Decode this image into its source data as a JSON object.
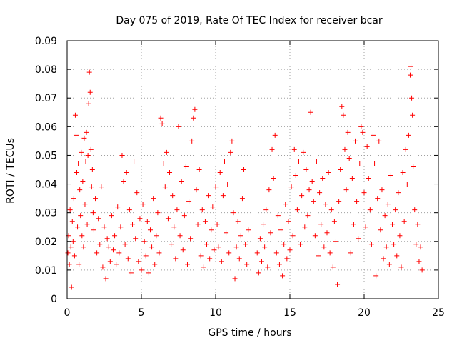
{
  "chart_data": {
    "type": "scatter",
    "title": "Day 075 of 2019, Rate Of TEC Index for receiver bcar",
    "xlabel": "GPS time / hours",
    "ylabel": "ROTI / TECUs",
    "xlim": [
      0,
      25
    ],
    "ylim": [
      0,
      0.09
    ],
    "x_ticks": [
      0,
      5,
      10,
      15,
      20,
      25
    ],
    "x_tick_labels": [
      "0",
      "5",
      "10",
      "15",
      "20",
      "25"
    ],
    "y_ticks": [
      0,
      0.01,
      0.02,
      0.03,
      0.04,
      0.05,
      0.06,
      0.07,
      0.08,
      0.09
    ],
    "y_tick_labels": [
      "0",
      "0.01",
      "0.02",
      "0.03",
      "0.04",
      "0.05",
      "0.06",
      "0.07",
      "0.08",
      "0.09"
    ],
    "grid": true,
    "marker": "+",
    "color": "#ff0000",
    "series": [
      {
        "points": [
          [
            0.05,
            0.016
          ],
          [
            0.1,
            0.022
          ],
          [
            0.15,
            0.012
          ],
          [
            0.2,
            0.031
          ],
          [
            0.25,
            0.018
          ],
          [
            0.3,
            0.004
          ],
          [
            0.35,
            0.027
          ],
          [
            0.4,
            0.02
          ],
          [
            0.45,
            0.035
          ],
          [
            0.5,
            0.015
          ],
          [
            0.55,
            0.064
          ],
          [
            0.6,
            0.057
          ],
          [
            0.65,
            0.044
          ],
          [
            0.7,
            0.025
          ],
          [
            0.75,
            0.047
          ],
          [
            0.8,
            0.012
          ],
          [
            0.85,
            0.038
          ],
          [
            0.9,
            0.029
          ],
          [
            0.95,
            0.051
          ],
          [
            1.0,
            0.022
          ],
          [
            1.05,
            0.041
          ],
          [
            1.1,
            0.018
          ],
          [
            1.15,
            0.056
          ],
          [
            1.2,
            0.033
          ],
          [
            1.25,
            0.048
          ],
          [
            1.3,
            0.058
          ],
          [
            1.35,
            0.026
          ],
          [
            1.4,
            0.05
          ],
          [
            1.45,
            0.068
          ],
          [
            1.5,
            0.079
          ],
          [
            1.55,
            0.072
          ],
          [
            1.6,
            0.052
          ],
          [
            1.65,
            0.039
          ],
          [
            1.7,
            0.045
          ],
          [
            1.75,
            0.03
          ],
          [
            1.8,
            0.024
          ],
          [
            1.9,
            0.035
          ],
          [
            2.0,
            0.016
          ],
          [
            2.1,
            0.028
          ],
          [
            2.2,
            0.019
          ],
          [
            2.3,
            0.039
          ],
          [
            2.4,
            0.011
          ],
          [
            2.5,
            0.025
          ],
          [
            2.6,
            0.007
          ],
          [
            2.7,
            0.021
          ],
          [
            2.8,
            0.018
          ],
          [
            2.9,
            0.013
          ],
          [
            3.0,
            0.029
          ],
          [
            3.1,
            0.017
          ],
          [
            3.2,
            0.022
          ],
          [
            3.3,
            0.012
          ],
          [
            3.4,
            0.032
          ],
          [
            3.5,
            0.016
          ],
          [
            3.6,
            0.025
          ],
          [
            3.7,
            0.05
          ],
          [
            3.8,
            0.041
          ],
          [
            3.9,
            0.019
          ],
          [
            4.0,
            0.044
          ],
          [
            4.1,
            0.014
          ],
          [
            4.2,
            0.031
          ],
          [
            4.3,
            0.009
          ],
          [
            4.4,
            0.026
          ],
          [
            4.5,
            0.048
          ],
          [
            4.6,
            0.021
          ],
          [
            4.7,
            0.037
          ],
          [
            4.8,
            0.013
          ],
          [
            4.9,
            0.028
          ],
          [
            5.0,
            0.01
          ],
          [
            5.1,
            0.033
          ],
          [
            5.2,
            0.02
          ],
          [
            5.3,
            0.015
          ],
          [
            5.4,
            0.027
          ],
          [
            5.5,
            0.009
          ],
          [
            5.6,
            0.024
          ],
          [
            5.7,
            0.018
          ],
          [
            5.8,
            0.035
          ],
          [
            5.9,
            0.012
          ],
          [
            6.0,
            0.022
          ],
          [
            6.1,
            0.03
          ],
          [
            6.2,
            0.016
          ],
          [
            6.3,
            0.063
          ],
          [
            6.4,
            0.061
          ],
          [
            6.5,
            0.047
          ],
          [
            6.6,
            0.039
          ],
          [
            6.7,
            0.051
          ],
          [
            6.8,
            0.028
          ],
          [
            6.9,
            0.044
          ],
          [
            7.0,
            0.019
          ],
          [
            7.1,
            0.036
          ],
          [
            7.2,
            0.025
          ],
          [
            7.3,
            0.014
          ],
          [
            7.4,
            0.031
          ],
          [
            7.5,
            0.06
          ],
          [
            7.6,
            0.022
          ],
          [
            7.7,
            0.041
          ],
          [
            7.8,
            0.017
          ],
          [
            7.9,
            0.029
          ],
          [
            8.0,
            0.046
          ],
          [
            8.1,
            0.012
          ],
          [
            8.2,
            0.034
          ],
          [
            8.3,
            0.021
          ],
          [
            8.4,
            0.055
          ],
          [
            8.5,
            0.063
          ],
          [
            8.6,
            0.066
          ],
          [
            8.7,
            0.038
          ],
          [
            8.8,
            0.026
          ],
          [
            8.9,
            0.045
          ],
          [
            9.0,
            0.015
          ],
          [
            9.1,
            0.031
          ],
          [
            9.2,
            0.011
          ],
          [
            9.3,
            0.027
          ],
          [
            9.4,
            0.019
          ],
          [
            9.5,
            0.036
          ],
          [
            9.6,
            0.014
          ],
          [
            9.7,
            0.024
          ],
          [
            9.8,
            0.032
          ],
          [
            9.9,
            0.017
          ],
          [
            10.0,
            0.039
          ],
          [
            10.1,
            0.026
          ],
          [
            10.2,
            0.018
          ],
          [
            10.3,
            0.044
          ],
          [
            10.4,
            0.013
          ],
          [
            10.5,
            0.036
          ],
          [
            10.6,
            0.048
          ],
          [
            10.7,
            0.023
          ],
          [
            10.8,
            0.04
          ],
          [
            10.9,
            0.016
          ],
          [
            11.0,
            0.051
          ],
          [
            11.1,
            0.055
          ],
          [
            11.2,
            0.03
          ],
          [
            11.3,
            0.007
          ],
          [
            11.4,
            0.018
          ],
          [
            11.5,
            0.027
          ],
          [
            11.6,
            0.014
          ],
          [
            11.7,
            0.022
          ],
          [
            11.8,
            0.035
          ],
          [
            11.9,
            0.045
          ],
          [
            12.0,
            0.019
          ],
          [
            12.1,
            0.012
          ],
          [
            12.2,
            0.024
          ],
          [
            12.8,
            0.016
          ],
          [
            12.9,
            0.009
          ],
          [
            13.0,
            0.021
          ],
          [
            13.1,
            0.013
          ],
          [
            13.2,
            0.026
          ],
          [
            13.3,
            0.018
          ],
          [
            13.4,
            0.031
          ],
          [
            13.5,
            0.011
          ],
          [
            13.6,
            0.038
          ],
          [
            13.7,
            0.023
          ],
          [
            13.8,
            0.052
          ],
          [
            13.9,
            0.042
          ],
          [
            14.0,
            0.057
          ],
          [
            14.1,
            0.016
          ],
          [
            14.2,
            0.029
          ],
          [
            14.3,
            0.012
          ],
          [
            14.4,
            0.024
          ],
          [
            14.5,
            0.008
          ],
          [
            14.6,
            0.019
          ],
          [
            14.7,
            0.033
          ],
          [
            14.8,
            0.014
          ],
          [
            14.9,
            0.027
          ],
          [
            15.0,
            0.017
          ],
          [
            15.1,
            0.039
          ],
          [
            15.2,
            0.022
          ],
          [
            15.3,
            0.052
          ],
          [
            15.4,
            0.043
          ],
          [
            15.5,
            0.031
          ],
          [
            15.6,
            0.048
          ],
          [
            15.7,
            0.019
          ],
          [
            15.8,
            0.036
          ],
          [
            15.9,
            0.051
          ],
          [
            16.0,
            0.025
          ],
          [
            16.1,
            0.045
          ],
          [
            16.2,
            0.029
          ],
          [
            16.3,
            0.038
          ],
          [
            16.4,
            0.065
          ],
          [
            16.5,
            0.041
          ],
          [
            16.6,
            0.034
          ],
          [
            16.7,
            0.022
          ],
          [
            16.8,
            0.048
          ],
          [
            16.9,
            0.015
          ],
          [
            17.0,
            0.037
          ],
          [
            17.1,
            0.026
          ],
          [
            17.2,
            0.042
          ],
          [
            17.3,
            0.018
          ],
          [
            17.4,
            0.033
          ],
          [
            17.5,
            0.023
          ],
          [
            17.6,
            0.044
          ],
          [
            17.7,
            0.016
          ],
          [
            17.8,
            0.031
          ],
          [
            17.9,
            0.011
          ],
          [
            18.0,
            0.027
          ],
          [
            18.1,
            0.02
          ],
          [
            18.2,
            0.005
          ],
          [
            18.3,
            0.034
          ],
          [
            18.4,
            0.045
          ],
          [
            18.5,
            0.067
          ],
          [
            18.6,
            0.064
          ],
          [
            18.7,
            0.052
          ],
          [
            18.8,
            0.038
          ],
          [
            18.9,
            0.058
          ],
          [
            19.0,
            0.049
          ],
          [
            19.1,
            0.016
          ],
          [
            19.2,
            0.042
          ],
          [
            19.3,
            0.026
          ],
          [
            19.4,
            0.055
          ],
          [
            19.5,
            0.034
          ],
          [
            19.6,
            0.021
          ],
          [
            19.7,
            0.047
          ],
          [
            19.8,
            0.06
          ],
          [
            19.9,
            0.058
          ],
          [
            20.0,
            0.037
          ],
          [
            20.1,
            0.025
          ],
          [
            20.2,
            0.053
          ],
          [
            20.3,
            0.042
          ],
          [
            20.4,
            0.031
          ],
          [
            20.5,
            0.019
          ],
          [
            20.6,
            0.057
          ],
          [
            20.7,
            0.047
          ],
          [
            20.8,
            0.008
          ],
          [
            20.9,
            0.035
          ],
          [
            21.0,
            0.055
          ],
          [
            21.1,
            0.024
          ],
          [
            21.2,
            0.038
          ],
          [
            21.3,
            0.014
          ],
          [
            21.4,
            0.029
          ],
          [
            21.5,
            0.018
          ],
          [
            21.6,
            0.033
          ],
          [
            21.7,
            0.012
          ],
          [
            21.8,
            0.043
          ],
          [
            21.9,
            0.026
          ],
          [
            22.0,
            0.019
          ],
          [
            22.1,
            0.031
          ],
          [
            22.2,
            0.015
          ],
          [
            22.3,
            0.037
          ],
          [
            22.4,
            0.022
          ],
          [
            22.5,
            0.011
          ],
          [
            22.6,
            0.044
          ],
          [
            22.7,
            0.027
          ],
          [
            22.8,
            0.052
          ],
          [
            22.9,
            0.04
          ],
          [
            23.0,
            0.057
          ],
          [
            23.1,
            0.078
          ],
          [
            23.15,
            0.081
          ],
          [
            23.2,
            0.07
          ],
          [
            23.25,
            0.064
          ],
          [
            23.3,
            0.046
          ],
          [
            23.4,
            0.031
          ],
          [
            23.5,
            0.019
          ],
          [
            23.6,
            0.026
          ],
          [
            23.7,
            0.013
          ],
          [
            23.8,
            0.018
          ],
          [
            23.9,
            0.01
          ]
        ]
      }
    ]
  }
}
